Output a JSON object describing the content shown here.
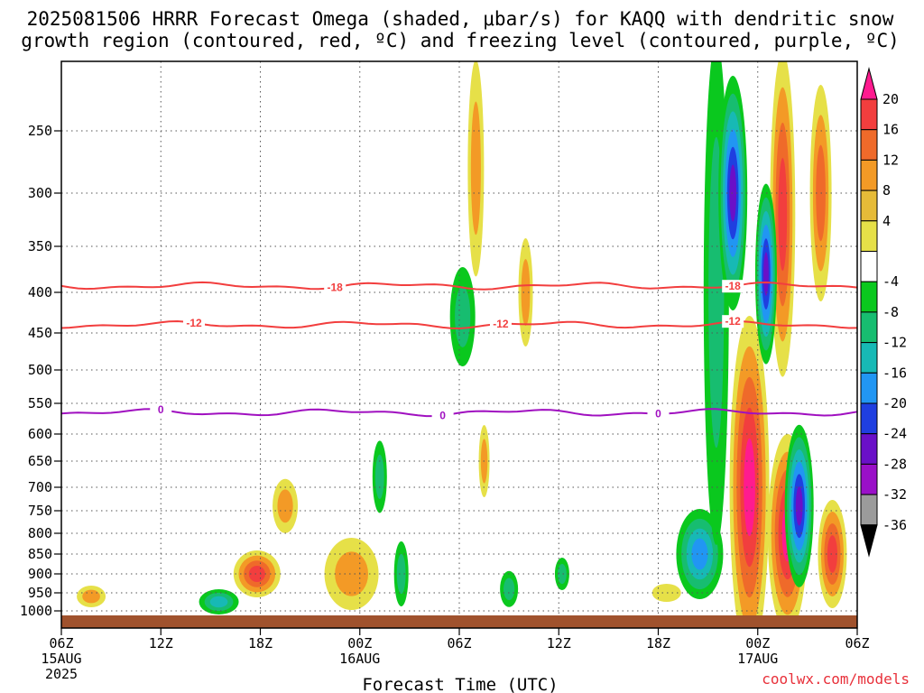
{
  "chart_data": {
    "type": "heatmap",
    "title_line1": "2025081506 HRRR Forecast Omega (shaded, μbar/s) for KAQQ with dendritic snow",
    "title_line2": "growth region (contoured, red, ºC) and freezing level (contoured, purple, ºC)",
    "xlabel": "Forecast Time (UTC)",
    "credit": "coolwx.com/models",
    "x_ticks": [
      {
        "hour": 0,
        "label": "06Z",
        "sub1": "15AUG",
        "sub2": "2025"
      },
      {
        "hour": 6,
        "label": "12Z"
      },
      {
        "hour": 12,
        "label": "18Z"
      },
      {
        "hour": 18,
        "label": "00Z",
        "sub1": "16AUG"
      },
      {
        "hour": 24,
        "label": "06Z"
      },
      {
        "hour": 30,
        "label": "12Z"
      },
      {
        "hour": 36,
        "label": "18Z"
      },
      {
        "hour": 42,
        "label": "00Z",
        "sub1": "17AUG"
      },
      {
        "hour": 48,
        "label": "06Z"
      }
    ],
    "y_ticks": [
      250,
      300,
      350,
      400,
      450,
      500,
      550,
      600,
      650,
      700,
      750,
      800,
      850,
      900,
      950,
      1000
    ],
    "x_range_hours": [
      0,
      48
    ],
    "colorbar": {
      "labels": [
        "20",
        "16",
        "12",
        "8",
        "4",
        "-4",
        "-8",
        "-12",
        "-16",
        "-20",
        "-24",
        "-28",
        "-32",
        "-36"
      ],
      "colors": [
        "#ff1b8f",
        "#f23e3e",
        "#ef6a2a",
        "#f39a26",
        "#e6bb38",
        "#e6e048",
        "#ffffff",
        "#0ac81e",
        "#17bd70",
        "#17b9b5",
        "#2196f3",
        "#1f3fe0",
        "#6a10c8",
        "#9a10c8",
        "#9b9b9b",
        "#000000"
      ]
    },
    "contours": [
      {
        "name": "dendritic growth -18",
        "color": "#f23e3e",
        "level_label": "-18",
        "hPa_approx": 393
      },
      {
        "name": "dendritic growth -12",
        "color": "#f23e3e",
        "level_label": "-12",
        "hPa_approx": 440
      },
      {
        "name": "freezing level",
        "color": "#a010c0",
        "level_label": "0",
        "hPa_approx": 565
      }
    ],
    "shaded_regions": [
      {
        "hour": 1.8,
        "hPa": 960,
        "omega": 5
      },
      {
        "hour": 9.5,
        "hPa": 975,
        "omega": -12
      },
      {
        "hour": 11.8,
        "hPa": 900,
        "omega": 14
      },
      {
        "hour": 13.5,
        "hPa": 740,
        "omega": 5
      },
      {
        "hour": 17.5,
        "hPa": 900,
        "omega": 6
      },
      {
        "hour": 19.2,
        "hPa": 680,
        "omega": -6
      },
      {
        "hour": 20.5,
        "hPa": 900,
        "omega": -6
      },
      {
        "hour": 25.5,
        "hPa": 650,
        "omega": 5
      },
      {
        "hour": 28,
        "hPa": 400,
        "omega": 5
      },
      {
        "hour": 25,
        "hPa": 280,
        "omega": 5
      },
      {
        "hour": 24.2,
        "hPa": 430,
        "omega": -8
      },
      {
        "hour": 27,
        "hPa": 940,
        "omega": -6
      },
      {
        "hour": 30.2,
        "hPa": 900,
        "omega": -5
      },
      {
        "hour": 36.5,
        "hPa": 950,
        "omega": 4
      },
      {
        "hour": 38.5,
        "hPa": 850,
        "omega": -16
      },
      {
        "hour": 39.5,
        "hPa": 400,
        "omega": -8
      },
      {
        "hour": 40.5,
        "hPa": 300,
        "omega": -24
      },
      {
        "hour": 41.5,
        "hPa": 700,
        "omega": 20
      },
      {
        "hour": 43.5,
        "hPa": 320,
        "omega": 16
      },
      {
        "hour": 42.5,
        "hPa": 380,
        "omega": -24
      },
      {
        "hour": 43.8,
        "hPa": 800,
        "omega": 20
      },
      {
        "hour": 45.8,
        "hPa": 300,
        "omega": 12
      },
      {
        "hour": 44.5,
        "hPa": 740,
        "omega": -24
      },
      {
        "hour": 46.5,
        "hPa": 850,
        "omega": 16
      }
    ]
  }
}
